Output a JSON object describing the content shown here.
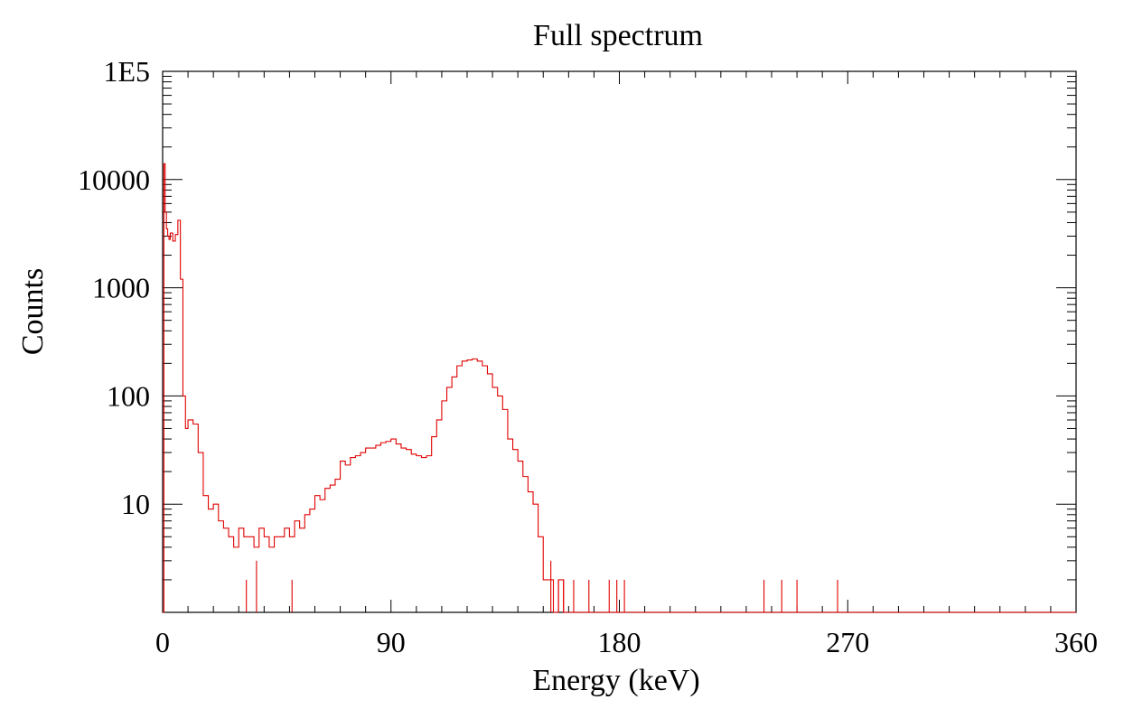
{
  "chart_data": {
    "type": "line",
    "title": "Full spectrum",
    "xlabel": "Energy (keV)",
    "ylabel": "Counts",
    "xlim": [
      0,
      360
    ],
    "ylim": [
      1,
      100000
    ],
    "y_scale": "log",
    "x_ticks": [
      "0",
      "90",
      "180",
      "270",
      "360"
    ],
    "y_ticks": [
      {
        "value": 10,
        "label": "10"
      },
      {
        "value": 100,
        "label": "100"
      },
      {
        "value": 1000,
        "label": "1000"
      },
      {
        "value": 10000,
        "label": "10000"
      },
      {
        "value": 100000,
        "label": "1E5"
      }
    ],
    "grid": false,
    "line_color": "#e00000",
    "series": [
      {
        "x": [
          0,
          0.5,
          1,
          1.5,
          2,
          2.5,
          3,
          4,
          5,
          6,
          7,
          8,
          9,
          10,
          12,
          14,
          16,
          18,
          20,
          22,
          24,
          26,
          28,
          30,
          32,
          34,
          36,
          38,
          40,
          42,
          44,
          46,
          48,
          50,
          52,
          54,
          56,
          58,
          60,
          62,
          64,
          66,
          68,
          70,
          72,
          74,
          76,
          78,
          80,
          82,
          84,
          86,
          88,
          90,
          92,
          94,
          96,
          98,
          100,
          102,
          104,
          106,
          108,
          110,
          112,
          114,
          116,
          118,
          120,
          122,
          124,
          126,
          128,
          130,
          132,
          134,
          136,
          138,
          140,
          142,
          144,
          146,
          148,
          150,
          152,
          154,
          156,
          158,
          160,
          165,
          170,
          175,
          178,
          180,
          182,
          184,
          190,
          200,
          220,
          236,
          238,
          240,
          244,
          246,
          248,
          250,
          252,
          264,
          266,
          268,
          300,
          330,
          360
        ],
        "y": [
          1,
          14000,
          5000,
          3500,
          3000,
          2800,
          3200,
          2700,
          3100,
          4200,
          1200,
          100,
          50,
          60,
          55,
          30,
          12,
          9,
          10,
          7,
          6,
          5,
          4,
          6,
          5,
          5,
          4,
          6,
          5,
          4,
          5,
          5,
          6,
          5,
          7,
          6,
          8,
          9,
          12,
          11,
          14,
          15,
          17,
          25,
          23,
          27,
          28,
          30,
          33,
          33,
          35,
          37,
          38,
          40,
          36,
          33,
          32,
          29,
          28,
          27,
          28,
          42,
          60,
          90,
          120,
          150,
          190,
          210,
          215,
          220,
          210,
          190,
          160,
          120,
          100,
          75,
          40,
          32,
          25,
          18,
          13,
          10,
          5,
          2,
          2,
          1,
          2,
          1,
          1,
          1,
          1,
          1,
          1,
          1,
          1,
          1,
          1,
          1,
          1,
          1,
          1,
          1,
          1,
          1,
          1,
          1,
          1,
          1,
          1,
          1,
          1,
          1,
          1
        ]
      }
    ],
    "spikes": [
      {
        "x": 33,
        "y": 2
      },
      {
        "x": 37,
        "y": 3
      },
      {
        "x": 51,
        "y": 2
      },
      {
        "x": 153,
        "y": 3
      },
      {
        "x": 156,
        "y": 2
      },
      {
        "x": 158,
        "y": 2
      },
      {
        "x": 162,
        "y": 2
      },
      {
        "x": 168,
        "y": 2
      },
      {
        "x": 176,
        "y": 2
      },
      {
        "x": 179,
        "y": 2
      },
      {
        "x": 182,
        "y": 2
      },
      {
        "x": 237,
        "y": 2
      },
      {
        "x": 244,
        "y": 2
      },
      {
        "x": 250,
        "y": 2
      },
      {
        "x": 266,
        "y": 2
      }
    ]
  }
}
